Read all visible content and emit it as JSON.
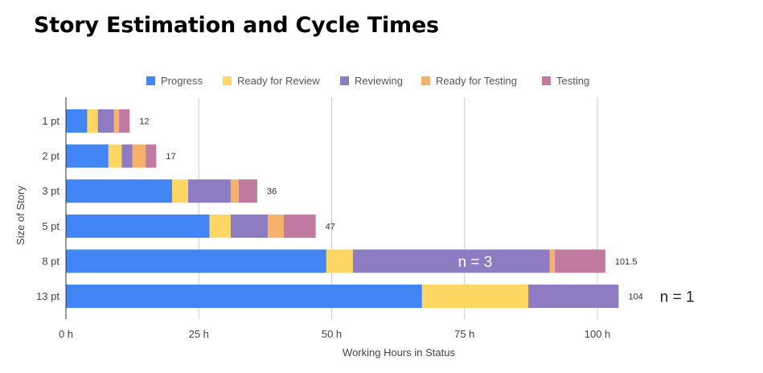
{
  "title": "Story Estimation and Cycle Times",
  "chart_data": {
    "type": "bar",
    "orientation": "horizontal",
    "stacked": true,
    "categories": [
      "1 pt",
      "2 pt",
      "3 pt",
      "5 pt",
      "8 pt",
      "13 pt"
    ],
    "series": [
      {
        "name": "Progress",
        "color": "#4285f4",
        "values": [
          4,
          8,
          20,
          27,
          49,
          67
        ]
      },
      {
        "name": "Ready for Review",
        "color": "#fdd663",
        "values": [
          2,
          2.5,
          3,
          4,
          5,
          20
        ]
      },
      {
        "name": "Reviewing",
        "color": "#8e7cc3",
        "values": [
          3,
          2,
          8,
          7,
          37,
          17
        ]
      },
      {
        "name": "Ready for Testing",
        "color": "#f6b26b",
        "values": [
          1,
          2.5,
          1.5,
          3,
          1,
          0
        ]
      },
      {
        "name": "Testing",
        "color": "#c27ba0",
        "values": [
          2,
          2,
          3.5,
          6,
          9.5,
          0
        ]
      }
    ],
    "totals": [
      "12",
      "17",
      "36",
      "47",
      "101.5",
      "104"
    ],
    "xlabel": "Working Hours in Status",
    "ylabel": "Size of Story",
    "xticks": [
      "0 h",
      "25 h",
      "50 h",
      "75 h",
      "100 h"
    ],
    "xtick_values": [
      0,
      25,
      50,
      75,
      100
    ],
    "xlim": [
      0,
      108
    ],
    "grid": true,
    "legend_position": "top",
    "annotations": [
      {
        "text": "n = 3",
        "category": "8 pt",
        "x": 77,
        "placement": "inside-bar"
      },
      {
        "text": "n = 1",
        "category": "13 pt",
        "x": 115,
        "placement": "outside-bar"
      }
    ]
  }
}
